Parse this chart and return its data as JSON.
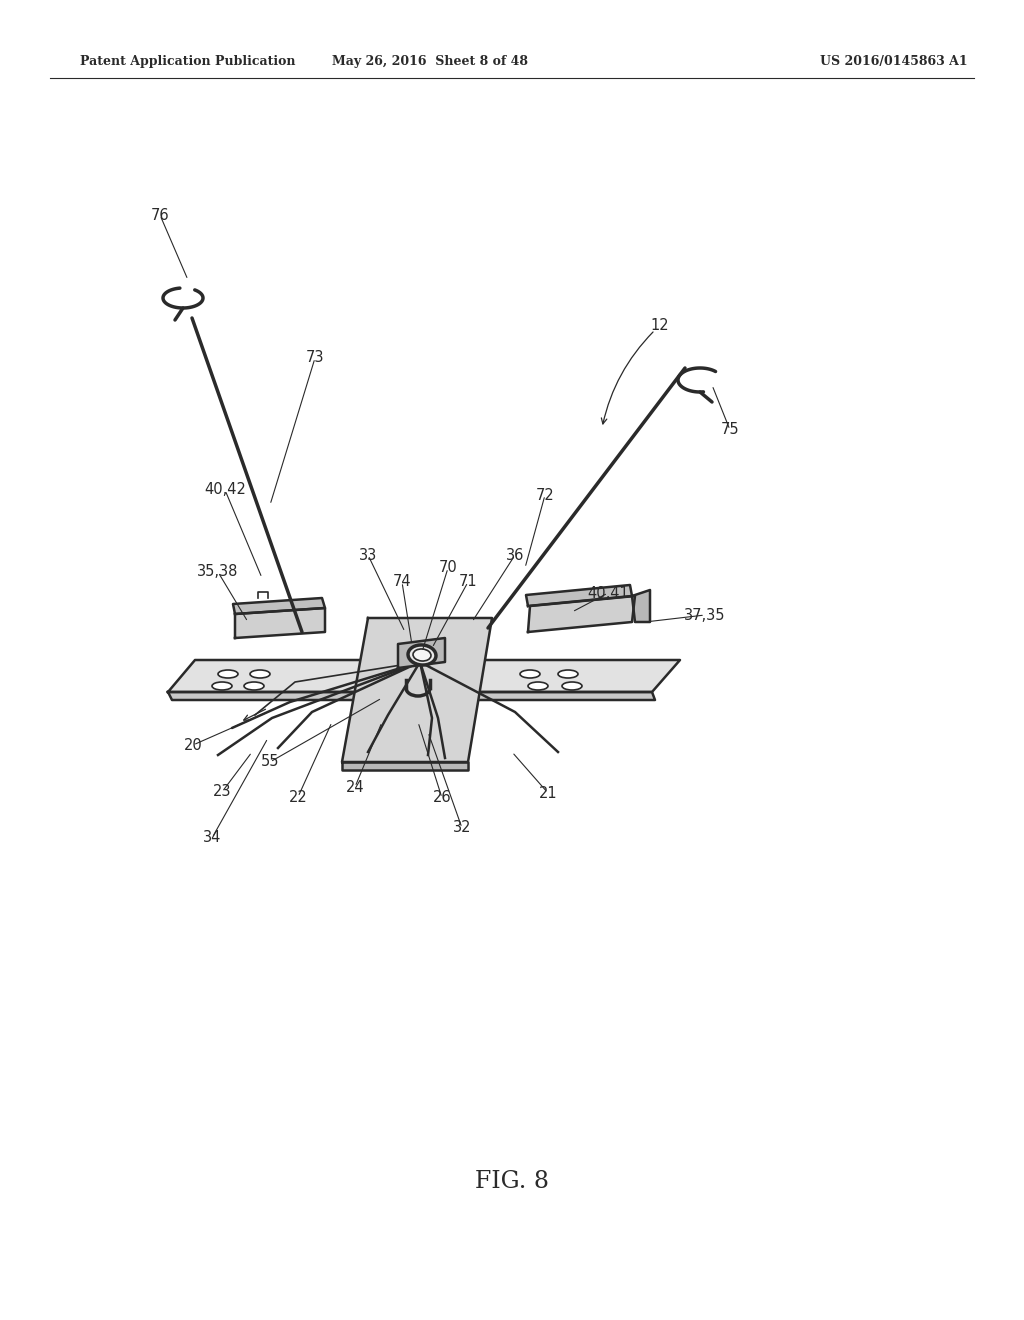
{
  "bg_color": "#ffffff",
  "header_left": "Patent Application Publication",
  "header_center": "May 26, 2016  Sheet 8 of 48",
  "header_right": "US 2016/0145863 A1",
  "fig_label": "FIG. 8",
  "gray": "#2a2a2a",
  "lw_main": 1.8,
  "lw_thick": 2.5,
  "lw_thin": 1.2,
  "labels_data": [
    [
      "76",
      160,
      215,
      188,
      280
    ],
    [
      "73",
      315,
      358,
      270,
      505
    ],
    [
      "12",
      660,
      325,
      null,
      null
    ],
    [
      "75",
      730,
      430,
      712,
      385
    ],
    [
      "40,42",
      225,
      490,
      262,
      578
    ],
    [
      "72",
      545,
      495,
      525,
      568
    ],
    [
      "33",
      368,
      555,
      405,
      632
    ],
    [
      "74",
      402,
      582,
      412,
      645
    ],
    [
      "70",
      448,
      568,
      422,
      652
    ],
    [
      "36",
      515,
      555,
      472,
      622
    ],
    [
      "71",
      468,
      582,
      432,
      648
    ],
    [
      "35,38",
      218,
      572,
      248,
      622
    ],
    [
      "40,41",
      608,
      593,
      572,
      612
    ],
    [
      "37,35",
      705,
      615,
      645,
      622
    ],
    [
      "20",
      193,
      745,
      268,
      712
    ],
    [
      "55",
      270,
      762,
      382,
      698
    ],
    [
      "23",
      222,
      792,
      252,
      752
    ],
    [
      "22",
      298,
      797,
      332,
      722
    ],
    [
      "24",
      355,
      787,
      382,
      722
    ],
    [
      "26",
      442,
      798,
      418,
      722
    ],
    [
      "21",
      548,
      793,
      512,
      752
    ],
    [
      "32",
      462,
      828,
      428,
      732
    ],
    [
      "34",
      212,
      838,
      268,
      738
    ]
  ]
}
